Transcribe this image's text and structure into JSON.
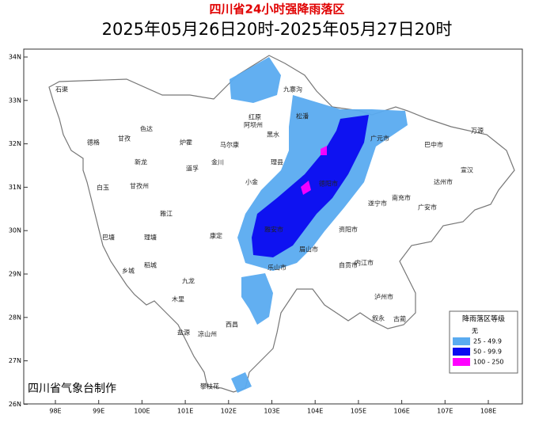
{
  "header": {
    "title": "四川省24小时强降雨落区",
    "subtitle": "2025年05月26日20时-2025年05月27日20时"
  },
  "map": {
    "lat_ticks": [
      "34N",
      "33N",
      "32N",
      "31N",
      "30N",
      "29N",
      "28N",
      "27N",
      "26N"
    ],
    "lon_ticks": [
      "98E",
      "99E",
      "100E",
      "101E",
      "102E",
      "103E",
      "104E",
      "105E",
      "106E",
      "107E",
      "108E"
    ],
    "places": [
      "石渠",
      "德格",
      "甘孜",
      "色达",
      "阿坝州",
      "马尔康",
      "红原",
      "松潘",
      "九寨沟",
      "黑水",
      "理县",
      "小金",
      "金川",
      "康定",
      "甘孜州",
      "白玉",
      "新龙",
      "炉霍",
      "道孚",
      "雅江",
      "理塘",
      "巴塘",
      "乡城",
      "稻城",
      "九龙",
      "木里",
      "盐源",
      "凉山州",
      "西昌",
      "攀枝花",
      "雅安市",
      "乐山市",
      "德阳市",
      "广元市",
      "巴中市",
      "达州市",
      "南充市",
      "遂宁市",
      "资阳市",
      "内江市",
      "自贡市",
      "泸州市",
      "眉山市",
      "万源",
      "宣汉",
      "广安市",
      "古蔺",
      "叙永"
    ]
  },
  "legend": {
    "title": "降雨落区等级",
    "items": [
      {
        "label": "无",
        "color": "#ffffff"
      },
      {
        "label": "25 - 49.9",
        "color": "#5aabf0"
      },
      {
        "label": "50 - 99.9",
        "color": "#0a0af0"
      },
      {
        "label": "100 - 250",
        "color": "#ff00ff"
      }
    ]
  },
  "footer": "四川省气象台制作"
}
